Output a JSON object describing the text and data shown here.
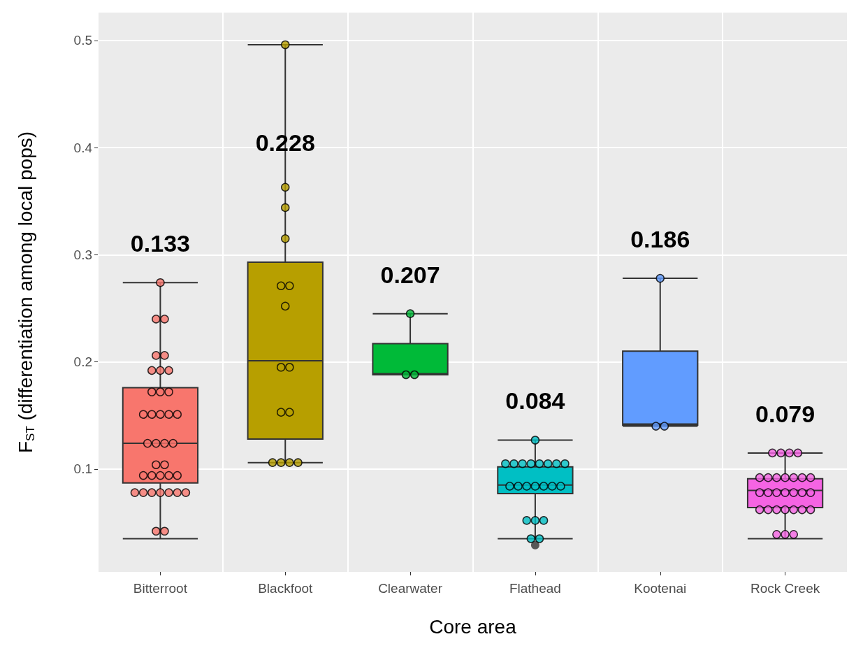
{
  "chart_data": {
    "type": "box",
    "xlabel": "Core area",
    "ylabel": "F$_{ST}$ (differentiation among local pops)",
    "categories": [
      "Bitterroot",
      "Blackfoot",
      "Clearwater",
      "Flathead",
      "Kootenai",
      "Rock Creek"
    ],
    "ylim": [
      0.004,
      0.526
    ],
    "yticks": [
      0.1,
      0.2,
      0.3,
      0.4,
      0.5
    ],
    "grid": true,
    "marker": "circle",
    "series": [
      {
        "colors": [
          "#f8766d",
          "#b79f00",
          "#00ba38",
          "#00bfc4",
          "#619cff",
          "#f564e3"
        ],
        "boxes": [
          {
            "low": 0.035,
            "q1": 0.087,
            "median": 0.124,
            "q3": 0.176,
            "high": 0.274
          },
          {
            "low": 0.106,
            "q1": 0.128,
            "median": 0.201,
            "q3": 0.293,
            "high": 0.496
          },
          {
            "low": 0.188,
            "q1": 0.188,
            "median": 0.189,
            "q3": 0.217,
            "high": 0.245
          },
          {
            "low": 0.035,
            "q1": 0.077,
            "median": 0.085,
            "q3": 0.102,
            "high": 0.127,
            "outliers": [
              0.029
            ]
          },
          {
            "low": 0.14,
            "q1": 0.141,
            "median": 0.142,
            "q3": 0.21,
            "high": 0.278
          },
          {
            "low": 0.035,
            "q1": 0.064,
            "median": 0.08,
            "q3": 0.091,
            "high": 0.115
          }
        ]
      },
      {
        "type": "scatter",
        "color": "#f8766d",
        "x": [
          "Bitterroot",
          "Bitterroot",
          "Bitterroot",
          "Bitterroot",
          "Bitterroot",
          "Bitterroot",
          "Bitterroot",
          "Bitterroot",
          "Bitterroot",
          "Bitterroot",
          "Bitterroot",
          "Bitterroot",
          "Bitterroot",
          "Bitterroot",
          "Bitterroot",
          "Bitterroot",
          "Bitterroot",
          "Bitterroot",
          "Bitterroot",
          "Bitterroot",
          "Bitterroot",
          "Bitterroot",
          "Bitterroot",
          "Bitterroot",
          "Bitterroot",
          "Bitterroot",
          "Bitterroot",
          "Bitterroot",
          "Bitterroot",
          "Bitterroot",
          "Bitterroot",
          "Bitterroot",
          "Bitterroot",
          "Bitterroot",
          "Bitterroot",
          "Bitterroot"
        ],
        "values": [
          0.274,
          0.24,
          0.24,
          0.206,
          0.206,
          0.192,
          0.192,
          0.192,
          0.172,
          0.172,
          0.172,
          0.151,
          0.151,
          0.151,
          0.151,
          0.151,
          0.124,
          0.124,
          0.124,
          0.124,
          0.104,
          0.104,
          0.094,
          0.094,
          0.094,
          0.094,
          0.094,
          0.078,
          0.078,
          0.078,
          0.078,
          0.078,
          0.078,
          0.078,
          0.042,
          0.042
        ]
      },
      {
        "type": "scatter",
        "color": "#b79f00",
        "x": [
          "Blackfoot",
          "Blackfoot",
          "Blackfoot",
          "Blackfoot",
          "Blackfoot",
          "Blackfoot",
          "Blackfoot",
          "Blackfoot",
          "Blackfoot",
          "Blackfoot",
          "Blackfoot",
          "Blackfoot",
          "Blackfoot",
          "Blackfoot",
          "Blackfoot"
        ],
        "values": [
          0.496,
          0.363,
          0.344,
          0.315,
          0.271,
          0.271,
          0.252,
          0.195,
          0.195,
          0.153,
          0.153,
          0.106,
          0.106,
          0.106,
          0.106
        ]
      },
      {
        "type": "scatter",
        "color": "#00ba38",
        "x": [
          "Clearwater",
          "Clearwater",
          "Clearwater"
        ],
        "values": [
          0.245,
          0.188,
          0.188
        ]
      },
      {
        "type": "scatter",
        "color": "#00bfc4",
        "x": [
          "Flathead",
          "Flathead",
          "Flathead",
          "Flathead",
          "Flathead",
          "Flathead",
          "Flathead",
          "Flathead",
          "Flathead",
          "Flathead",
          "Flathead",
          "Flathead",
          "Flathead",
          "Flathead",
          "Flathead",
          "Flathead",
          "Flathead",
          "Flathead",
          "Flathead",
          "Flathead",
          "Flathead"
        ],
        "values": [
          0.127,
          0.105,
          0.105,
          0.105,
          0.105,
          0.105,
          0.105,
          0.105,
          0.105,
          0.084,
          0.084,
          0.084,
          0.084,
          0.084,
          0.084,
          0.084,
          0.052,
          0.052,
          0.052,
          0.035,
          0.035
        ]
      },
      {
        "type": "scatter",
        "color": "#619cff",
        "x": [
          "Kootenai",
          "Kootenai",
          "Kootenai"
        ],
        "values": [
          0.278,
          0.14,
          0.14
        ]
      },
      {
        "type": "scatter",
        "color": "#f564e3",
        "x": [
          "Rock Creek",
          "Rock Creek",
          "Rock Creek",
          "Rock Creek",
          "Rock Creek",
          "Rock Creek",
          "Rock Creek",
          "Rock Creek",
          "Rock Creek",
          "Rock Creek",
          "Rock Creek",
          "Rock Creek",
          "Rock Creek",
          "Rock Creek",
          "Rock Creek",
          "Rock Creek",
          "Rock Creek",
          "Rock Creek",
          "Rock Creek",
          "Rock Creek",
          "Rock Creek",
          "Rock Creek",
          "Rock Creek",
          "Rock Creek",
          "Rock Creek",
          "Rock Creek",
          "Rock Creek",
          "Rock Creek"
        ],
        "values": [
          0.115,
          0.115,
          0.115,
          0.115,
          0.092,
          0.092,
          0.092,
          0.092,
          0.092,
          0.092,
          0.092,
          0.078,
          0.078,
          0.078,
          0.078,
          0.078,
          0.078,
          0.078,
          0.062,
          0.062,
          0.062,
          0.062,
          0.062,
          0.062,
          0.062,
          0.039,
          0.039,
          0.039
        ]
      }
    ],
    "annotations": [
      "0.133",
      "0.228",
      "0.207",
      "0.084",
      "0.186",
      "0.079"
    ]
  }
}
